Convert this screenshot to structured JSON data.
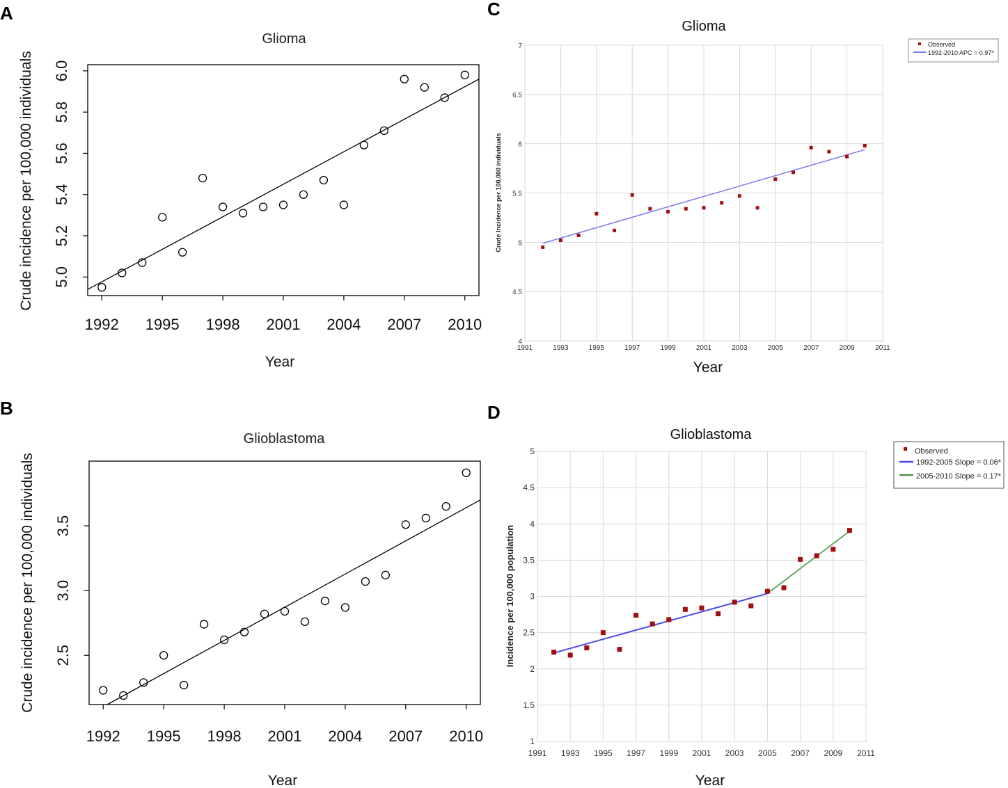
{
  "chart_data": [
    {
      "id": "A",
      "type": "scatter",
      "title": "Glioma",
      "xlabel": "Year",
      "ylabel": "Crude incidence per 100,000 individuals",
      "xlim": [
        1991.3,
        2010.7
      ],
      "ylim": [
        4.91,
        6.03
      ],
      "x_ticks": [
        1992,
        1995,
        1998,
        2001,
        2004,
        2007,
        2010
      ],
      "x_tick_labels": [
        "1992",
        "1995",
        "1998",
        "2001",
        "2004",
        "2007",
        "2010"
      ],
      "y_ticks": [
        5.0,
        5.2,
        5.4,
        5.6,
        5.8,
        6.0
      ],
      "y_tick_labels": [
        "5.0",
        "5.2",
        "5.4",
        "5.6",
        "5.8",
        "6.0"
      ],
      "x": [
        1992,
        1993,
        1994,
        1995,
        1996,
        1997,
        1998,
        1999,
        2000,
        2001,
        2002,
        2003,
        2004,
        2005,
        2006,
        2007,
        2008,
        2009,
        2010
      ],
      "y": [
        4.95,
        5.02,
        5.07,
        5.29,
        5.12,
        5.48,
        5.34,
        5.31,
        5.34,
        5.35,
        5.4,
        5.47,
        5.35,
        5.64,
        5.71,
        5.96,
        5.92,
        5.87,
        5.98
      ],
      "fit_line": {
        "x": [
          1991.3,
          2010.7
        ],
        "y": [
          4.94,
          5.96
        ]
      }
    },
    {
      "id": "B",
      "type": "scatter",
      "title": "Glioblastoma",
      "xlabel": "Year",
      "ylabel": "Crude incidence per 100,000 individuals",
      "xlim": [
        1991.3,
        2010.7
      ],
      "ylim": [
        2.12,
        4.0
      ],
      "x_ticks": [
        1992,
        1995,
        1998,
        2001,
        2004,
        2007,
        2010
      ],
      "x_tick_labels": [
        "1992",
        "1995",
        "1998",
        "2001",
        "2004",
        "2007",
        "2010"
      ],
      "y_ticks": [
        2.5,
        3.0,
        3.5
      ],
      "y_tick_labels": [
        "2.5",
        "3.0",
        "3.5"
      ],
      "x": [
        1992,
        1993,
        1994,
        1995,
        1996,
        1997,
        1998,
        1999,
        2000,
        2001,
        2002,
        2003,
        2004,
        2005,
        2006,
        2007,
        2008,
        2009,
        2010
      ],
      "y": [
        2.23,
        2.19,
        2.29,
        2.5,
        2.27,
        2.74,
        2.62,
        2.68,
        2.82,
        2.84,
        2.76,
        2.92,
        2.87,
        3.07,
        3.12,
        3.51,
        3.56,
        3.65,
        3.91
      ],
      "fit_line": {
        "x": [
          1992.2,
          2010.7
        ],
        "y": [
          2.12,
          3.7
        ]
      }
    },
    {
      "id": "C",
      "type": "scatter",
      "title": "Glioma",
      "xlabel": "Year",
      "ylabel": "Crude Incidence per 100,000 individuals",
      "xlim": [
        1991,
        2011
      ],
      "ylim": [
        4,
        7
      ],
      "x_ticks": [
        1991,
        1993,
        1995,
        1997,
        1999,
        2001,
        2003,
        2005,
        2007,
        2009,
        2011
      ],
      "x_tick_labels": [
        "1991",
        "1993",
        "1995",
        "1997",
        "1999",
        "2001",
        "2003",
        "2005",
        "2007",
        "2009",
        "2011"
      ],
      "y_ticks": [
        4,
        4.5,
        5,
        5.5,
        6,
        6.5,
        7
      ],
      "y_tick_labels": [
        "4",
        "4.5",
        "5",
        "5.5",
        "6",
        "6.5",
        "7"
      ],
      "x": [
        1992,
        1993,
        1994,
        1995,
        1996,
        1997,
        1998,
        1999,
        2000,
        2001,
        2002,
        2003,
        2004,
        2005,
        2006,
        2007,
        2008,
        2009,
        2010
      ],
      "y": [
        4.95,
        5.02,
        5.07,
        5.29,
        5.12,
        5.48,
        5.34,
        5.31,
        5.34,
        5.35,
        5.4,
        5.47,
        5.35,
        5.64,
        5.71,
        5.96,
        5.92,
        5.87,
        5.98
      ],
      "series": [
        {
          "name": "1992-2010 APC = 0.97*",
          "x": [
            1992,
            2010
          ],
          "y": [
            4.99,
            5.94
          ],
          "color": "#7b7bf0"
        }
      ],
      "legend": [
        "Observed",
        "1992-2010 APC = 0.97*"
      ]
    },
    {
      "id": "D",
      "type": "scatter",
      "title": "Glioblastoma",
      "xlabel": "Year",
      "ylabel": "Incidence per 100,000 population",
      "xlim": [
        1991,
        2011
      ],
      "ylim": [
        1,
        5
      ],
      "x_ticks": [
        1991,
        1993,
        1995,
        1997,
        1999,
        2001,
        2003,
        2005,
        2007,
        2009,
        2011
      ],
      "x_tick_labels": [
        "1991",
        "1993",
        "1995",
        "1997",
        "1999",
        "2001",
        "2003",
        "2005",
        "2007",
        "2009",
        "2011"
      ],
      "y_ticks": [
        1,
        1.5,
        2,
        2.5,
        3,
        3.5,
        4,
        4.5,
        5
      ],
      "y_tick_labels": [
        "1",
        "1.5",
        "2",
        "2.5",
        "3",
        "3.5",
        "4",
        "4.5",
        "5"
      ],
      "x": [
        1992,
        1993,
        1994,
        1995,
        1996,
        1997,
        1998,
        1999,
        2000,
        2001,
        2002,
        2003,
        2004,
        2005,
        2006,
        2007,
        2008,
        2009,
        2010
      ],
      "y": [
        2.23,
        2.19,
        2.29,
        2.5,
        2.27,
        2.74,
        2.62,
        2.68,
        2.82,
        2.84,
        2.76,
        2.92,
        2.87,
        3.07,
        3.12,
        3.51,
        3.56,
        3.65,
        3.91
      ],
      "series": [
        {
          "name": "1992-2005 Slope = 0.06*",
          "x": [
            1992,
            2005
          ],
          "y": [
            2.22,
            3.04
          ],
          "color": "#4a4ae8"
        },
        {
          "name": "2005-2010 Slope = 0.17*",
          "x": [
            2005,
            2010
          ],
          "y": [
            3.04,
            3.9
          ],
          "color": "#6aa86a"
        }
      ],
      "legend": [
        "Observed",
        "1992-2005 Slope = 0.06*",
        "2005-2010 Slope = 0.17*"
      ]
    }
  ],
  "panel_labels": [
    "A",
    "B",
    "C",
    "D"
  ]
}
